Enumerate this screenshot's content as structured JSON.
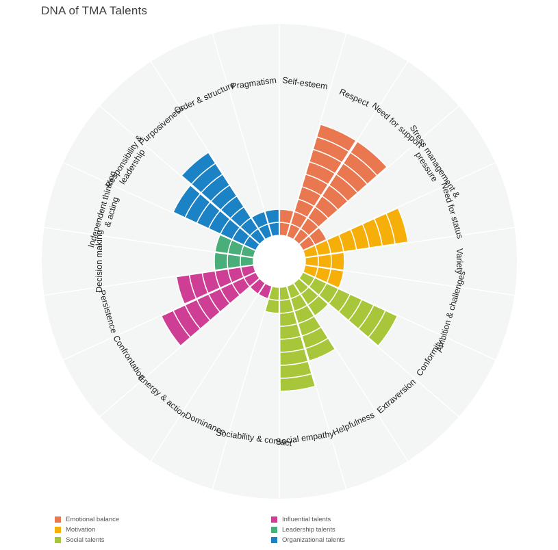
{
  "page": {
    "title": "DNA of TMA Talents"
  },
  "colors": {
    "background_disc": "#f3f6f5",
    "divider": "#ffffff",
    "Emotional balance": "#e9774f",
    "Motivation": "#f6ae08",
    "Social talents": "#a8c63a",
    "Influential talents": "#cf3e95",
    "Leadership talents": "#4aae7b",
    "Organizational talents": "#1b82c6"
  },
  "chart_data": {
    "type": "polar-bar",
    "title": "DNA of TMA Talents",
    "scale_max": 10,
    "start_angle_deg": -90,
    "direction": "clockwise",
    "categories": [
      {
        "label": "Self-esteem",
        "group": "Emotional balance",
        "value": 2
      },
      {
        "label": "Respect",
        "group": "Emotional balance",
        "value": 9
      },
      {
        "label": "Need for support",
        "group": "Emotional balance",
        "value": 9
      },
      {
        "label": "Stress management & pressure",
        "group": "Emotional balance",
        "value": 2
      },
      {
        "label": "Need for status",
        "group": "Motivation",
        "value": 8
      },
      {
        "label": "Variety",
        "group": "Motivation",
        "value": 3
      },
      {
        "label": "Ambition & challenges",
        "group": "Motivation",
        "value": 3
      },
      {
        "label": "Conformity",
        "group": "Social talents",
        "value": 8
      },
      {
        "label": "Extraversion",
        "group": "Social talents",
        "value": 3
      },
      {
        "label": "Helpfulness",
        "group": "Social talents",
        "value": 6
      },
      {
        "label": "Social empathy",
        "group": "Social talents",
        "value": 8
      },
      {
        "label": "Sociability & contact",
        "group": "Social talents",
        "value": 2
      },
      {
        "label": "Dominance",
        "group": "Influential talents",
        "value": 1
      },
      {
        "label": "Energy & action",
        "group": "Influential talents",
        "value": 1
      },
      {
        "label": "Confrontation",
        "group": "Influential talents",
        "value": 8
      },
      {
        "label": "Persistence",
        "group": "Influential talents",
        "value": 6
      },
      {
        "label": "Decision making",
        "group": "Leadership talents",
        "value": 3
      },
      {
        "label": "Independent thinking & acting",
        "group": "Leadership talents",
        "value": 3
      },
      {
        "label": "Responsibility & leadership",
        "group": "Organizational talents",
        "value": 7
      },
      {
        "label": "Purposiveness",
        "group": "Organizational talents",
        "value": 8
      },
      {
        "label": "Order & structure",
        "group": "Organizational talents",
        "value": 2
      },
      {
        "label": "Pragmatism",
        "group": "Organizational talents",
        "value": 2
      }
    ],
    "legend": [
      {
        "name": "Emotional balance",
        "color": "#e9774f"
      },
      {
        "name": "Motivation",
        "color": "#f6ae08"
      },
      {
        "name": "Social talents",
        "color": "#a8c63a"
      },
      {
        "name": "Influential talents",
        "color": "#cf3e95"
      },
      {
        "name": "Leadership talents",
        "color": "#4aae7b"
      },
      {
        "name": "Organizational talents",
        "color": "#1b82c6"
      }
    ]
  }
}
